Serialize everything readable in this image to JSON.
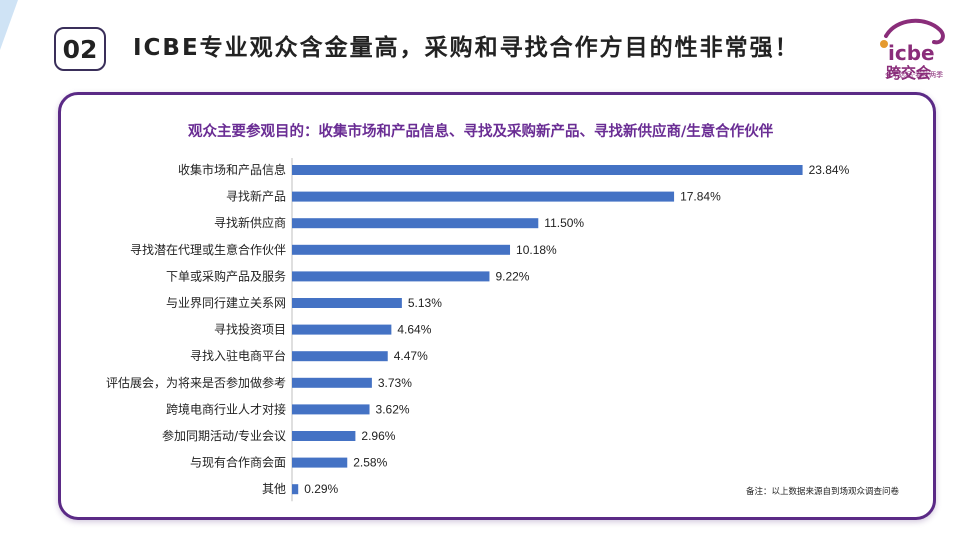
{
  "header": {
    "number": "02",
    "title": "ICBE专业观众含金量高，采购和寻找合作方目的性非常强！"
  },
  "logo": {
    "brand": "icbe",
    "cn_name": "跨交会",
    "tagline": "全年选品·春秋两季",
    "colors": {
      "primary": "#8a2d7a",
      "accent": "#5b2a86"
    }
  },
  "chart_data": {
    "type": "bar",
    "orientation": "horizontal",
    "title": "观众主要参观目的：收集市场和产品信息、寻找及采购新产品、寻找新供应商/生意合作伙伴",
    "categories": [
      "收集市场和产品信息",
      "寻找新产品",
      "寻找新供应商",
      "寻找潜在代理或生意合作伙伴",
      "下单或采购产品及服务",
      "与业界同行建立关系网",
      "寻找投资项目",
      "寻找入驻电商平台",
      "评估展会，为将来是否参加做参考",
      "跨境电商行业人才对接",
      "参加同期活动/专业会议",
      "与现有合作商会面",
      "其他"
    ],
    "values": [
      23.84,
      17.84,
      11.5,
      10.18,
      9.22,
      5.13,
      4.64,
      4.47,
      3.73,
      3.62,
      2.96,
      2.58,
      0.29
    ],
    "value_labels": [
      "23.84%",
      "17.84%",
      "11.50%",
      "10.18%",
      "9.22%",
      "5.13%",
      "4.64%",
      "4.47%",
      "3.73%",
      "3.62%",
      "2.96%",
      "2.58%",
      "0.29%"
    ],
    "unit": "%",
    "xlim": [
      0,
      24
    ],
    "bar_color": "#4472c4",
    "grid": false
  },
  "footnote": "备注：以上数据来源自到场观众调查问卷"
}
